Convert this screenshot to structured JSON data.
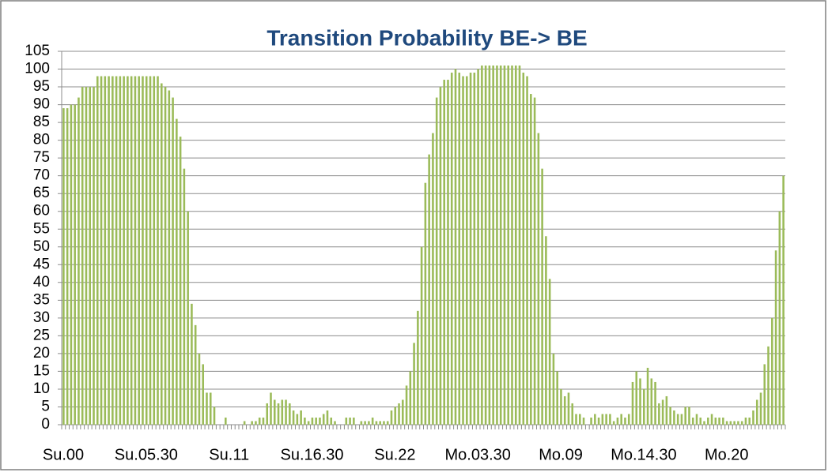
{
  "chart_data": {
    "type": "bar",
    "title": "Transition Probability  BE-> BE",
    "categories": [
      "Su.00",
      null,
      null,
      null,
      null,
      null,
      null,
      null,
      null,
      null,
      null,
      null,
      null,
      null,
      null,
      null,
      null,
      null,
      null,
      null,
      null,
      null,
      "Su.05.30",
      null,
      null,
      null,
      null,
      null,
      null,
      null,
      null,
      null,
      null,
      null,
      null,
      null,
      null,
      null,
      null,
      null,
      null,
      null,
      null,
      null,
      "Su.11",
      null,
      null,
      null,
      null,
      null,
      null,
      null,
      null,
      null,
      null,
      null,
      null,
      null,
      null,
      null,
      null,
      null,
      null,
      null,
      null,
      null,
      "Su.16.30",
      null,
      null,
      null,
      null,
      null,
      null,
      null,
      null,
      null,
      null,
      null,
      null,
      null,
      null,
      null,
      null,
      null,
      null,
      null,
      null,
      null,
      "Su.22",
      null,
      null,
      null,
      null,
      null,
      null,
      null,
      null,
      null,
      null,
      null,
      null,
      null,
      null,
      null,
      null,
      null,
      null,
      null,
      null,
      null,
      "Mo.03.30",
      null,
      null,
      null,
      null,
      null,
      null,
      null,
      null,
      null,
      null,
      null,
      null,
      null,
      null,
      null,
      null,
      null,
      null,
      null,
      null,
      null,
      "Mo.09",
      null,
      null,
      null,
      null,
      null,
      null,
      null,
      null,
      null,
      null,
      null,
      null,
      null,
      null,
      null,
      null,
      null,
      null,
      null,
      null,
      null,
      "Mo.14.30",
      null,
      null,
      null,
      null,
      null,
      null,
      null,
      null,
      null,
      null,
      null,
      null,
      null,
      null,
      null,
      null,
      null,
      null,
      null,
      null,
      null,
      "Mo.20",
      null,
      null,
      null,
      null,
      null,
      null,
      null,
      null,
      null,
      null,
      null,
      null,
      null,
      null,
      null
    ],
    "values": [
      89,
      89,
      90,
      90,
      92,
      95,
      95,
      95,
      95,
      98,
      98,
      98,
      98,
      98,
      98,
      98,
      98,
      98,
      98,
      98,
      98,
      98,
      98,
      98,
      98,
      98,
      96,
      95,
      94,
      92,
      86,
      81,
      72,
      60,
      34,
      28,
      20,
      17,
      9,
      9,
      5,
      0,
      0,
      2,
      0,
      0,
      0,
      0,
      1,
      0,
      1,
      1,
      2,
      2,
      6,
      9,
      7,
      6,
      7,
      7,
      6,
      4,
      3,
      4,
      2,
      1,
      2,
      2,
      2,
      3,
      4,
      2,
      1,
      0,
      0,
      2,
      2,
      2,
      0,
      1,
      1,
      1,
      2,
      1,
      1,
      1,
      1,
      4,
      5,
      6,
      7,
      11,
      15,
      23,
      32,
      50,
      68,
      76,
      82,
      92,
      95,
      97,
      97,
      99,
      100,
      99,
      98,
      98,
      99,
      99,
      100,
      101,
      101,
      101,
      101,
      101,
      101,
      101,
      101,
      101,
      101,
      101,
      99,
      98,
      93,
      92,
      82,
      72,
      53,
      41,
      20,
      15,
      10,
      8,
      9,
      6,
      3,
      3,
      2,
      0,
      2,
      3,
      2,
      3,
      3,
      3,
      1,
      2,
      3,
      2,
      3,
      12,
      15,
      13,
      10,
      16,
      13,
      12,
      6,
      7,
      8,
      5,
      4,
      3,
      3,
      5,
      5,
      2,
      3,
      2,
      1,
      2,
      3,
      2,
      2,
      2,
      1,
      1,
      1,
      1,
      1,
      2,
      2,
      4,
      7,
      9,
      17,
      22,
      30,
      49,
      60,
      70
    ],
    "color": "#9bbb59",
    "ylim": [
      0,
      105
    ],
    "yticks": [
      0,
      5,
      10,
      15,
      20,
      25,
      30,
      35,
      40,
      45,
      50,
      55,
      60,
      65,
      70,
      75,
      80,
      85,
      90,
      95,
      100,
      105
    ],
    "grid": true
  }
}
